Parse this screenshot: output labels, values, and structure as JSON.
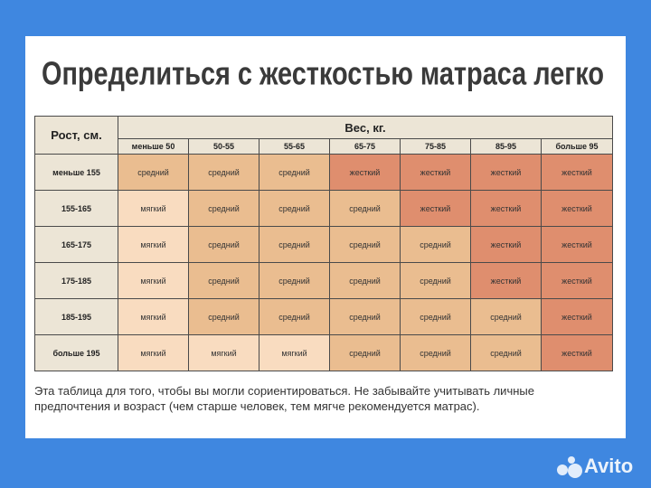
{
  "title": "Определиться с жесткостью матраса легко",
  "table": {
    "corner": "Рост, см.",
    "group_header": "Вес, кг.",
    "columns": [
      "меньше 50",
      "50-55",
      "55-65",
      "65-75",
      "75-85",
      "85-95",
      "больше 95"
    ],
    "rows": [
      {
        "label": "меньше 155",
        "cells": [
          "средний",
          "средний",
          "средний",
          "жесткий",
          "жесткий",
          "жесткий",
          "жесткий"
        ]
      },
      {
        "label": "155-165",
        "cells": [
          "мягкий",
          "средний",
          "средний",
          "средний",
          "жесткий",
          "жесткий",
          "жесткий"
        ]
      },
      {
        "label": "165-175",
        "cells": [
          "мягкий",
          "средний",
          "средний",
          "средний",
          "средний",
          "жесткий",
          "жесткий"
        ]
      },
      {
        "label": "175-185",
        "cells": [
          "мягкий",
          "средний",
          "средний",
          "средний",
          "средний",
          "жесткий",
          "жесткий"
        ]
      },
      {
        "label": "185-195",
        "cells": [
          "мягкий",
          "средний",
          "средний",
          "средний",
          "средний",
          "средний",
          "жесткий"
        ]
      },
      {
        "label": "больше 195",
        "cells": [
          "мягкий",
          "мягкий",
          "мягкий",
          "средний",
          "средний",
          "средний",
          "жесткий"
        ]
      }
    ]
  },
  "note_lines": [
    "Эта таблица для того, чтобы вы могли сориентироваться. Не забывайте учитывать личные",
    "предпочтения и возраст (чем старше человек, тем мягче рекомендуется матрас)."
  ],
  "watermark": "Avito"
}
